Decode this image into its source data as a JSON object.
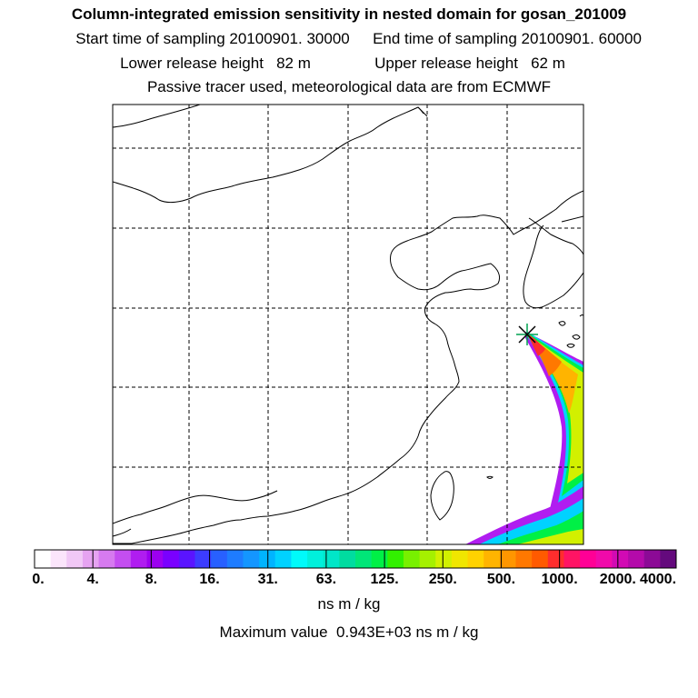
{
  "header": {
    "title": "Column-integrated emission sensitivity in nested domain for gosan_201009",
    "line2_start": "Start time of sampling 20100901. 30000",
    "line2_end": "End time of sampling 20100901. 60000",
    "line3_lower": "Lower release height   82 m",
    "line3_upper": "Upper release height   62 m",
    "line4": "Passive tracer used, meteorological data are from ECMWF"
  },
  "map": {
    "release_site": "gosan",
    "marker_icon": "star-cross-icon",
    "coastline_color": "#000000",
    "grid_style": "dashed"
  },
  "colorbar": {
    "labels": [
      "0.",
      "4.",
      "8.",
      "16.",
      "31.",
      "63.",
      "125.",
      "250.",
      "500.",
      "1000.",
      "2000.",
      "4000."
    ],
    "colors": [
      "#ffffff",
      "#fbe5fb",
      "#f1c8f6",
      "#e6a3f1",
      "#d67aef",
      "#c44ef0",
      "#b01df0",
      "#9c00f0",
      "#7a00ff",
      "#5a14ff",
      "#3c3cff",
      "#2860ff",
      "#1e7cff",
      "#1496ff",
      "#00b4ff",
      "#00d2ff",
      "#00fafa",
      "#00f0dc",
      "#00e6c8",
      "#00dca0",
      "#00e678",
      "#00f046",
      "#32f000",
      "#78f000",
      "#a5f000",
      "#d2f000",
      "#f0e600",
      "#ffd200",
      "#ffb400",
      "#ff9600",
      "#ff7800",
      "#ff5a00",
      "#ff2d2d",
      "#ff1464",
      "#ff0096",
      "#f00aaa",
      "#d20ab4",
      "#b40aaa",
      "#8c0a96",
      "#640a7d"
    ],
    "unit": "ns m / kg"
  },
  "footer": {
    "max_value": "Maximum value  0.943E+03 ns m / kg"
  }
}
